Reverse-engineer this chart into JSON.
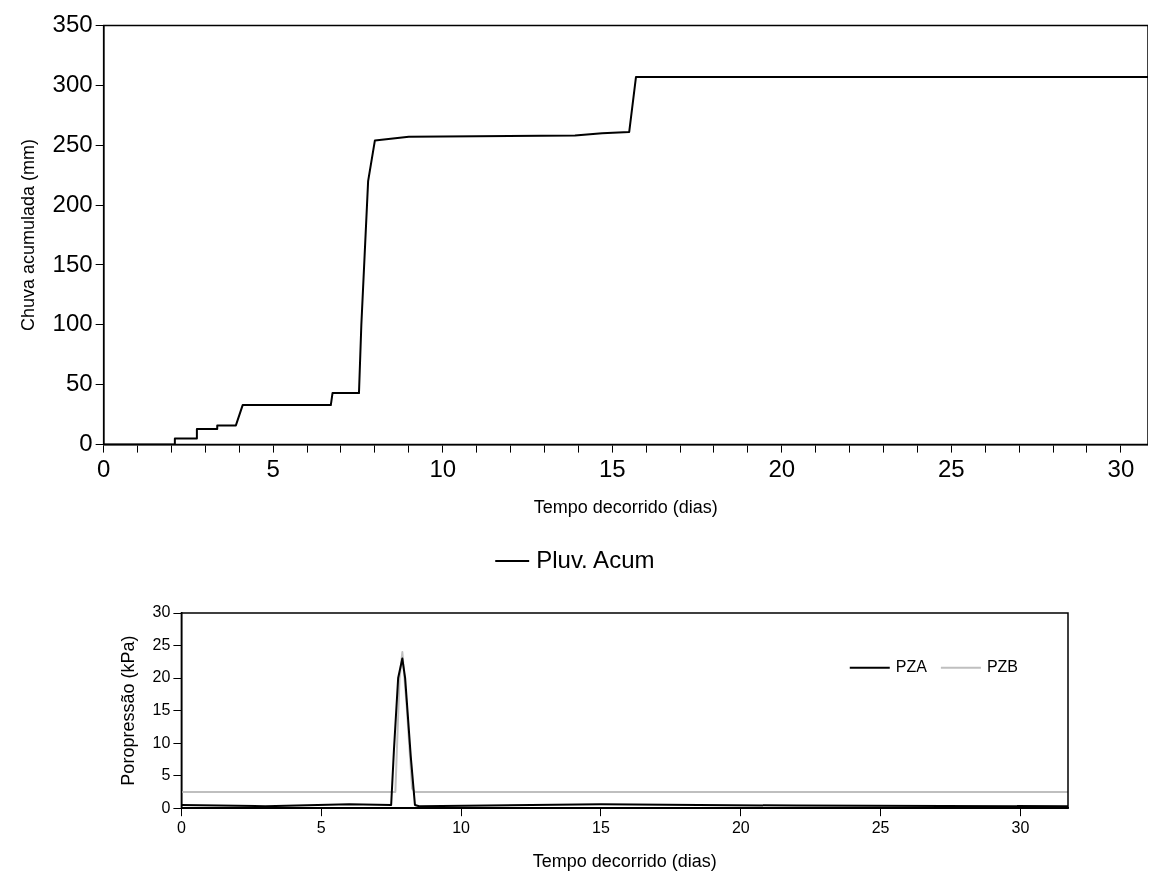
{
  "chart_data": [
    {
      "type": "line",
      "xlabel": "Tempo decorrido (dias)",
      "ylabel": "Chuva acumulada (mm)",
      "xlim": [
        0,
        30.8
      ],
      "ylim": [
        0,
        350
      ],
      "xticks": [
        0,
        {
          "value": 1,
          "label": null
        },
        {
          "value": 2,
          "label": null
        },
        {
          "value": 3,
          "label": null
        },
        {
          "value": 4,
          "label": null
        },
        5,
        {
          "value": 6,
          "label": null
        },
        {
          "value": 7,
          "label": null
        },
        {
          "value": 8,
          "label": null
        },
        {
          "value": 9,
          "label": null
        },
        10,
        {
          "value": 11,
          "label": null
        },
        {
          "value": 12,
          "label": null
        },
        {
          "value": 13,
          "label": null
        },
        {
          "value": 14,
          "label": null
        },
        15,
        {
          "value": 16,
          "label": null
        },
        {
          "value": 17,
          "label": null
        },
        {
          "value": 18,
          "label": null
        },
        {
          "value": 19,
          "label": null
        },
        20,
        {
          "value": 21,
          "label": null
        },
        {
          "value": 22,
          "label": null
        },
        {
          "value": 23,
          "label": null
        },
        {
          "value": 24,
          "label": null
        },
        25,
        {
          "value": 26,
          "label": null
        },
        {
          "value": 27,
          "label": null
        },
        {
          "value": 28,
          "label": null
        },
        {
          "value": 29,
          "label": null
        },
        30
      ],
      "yticks": [
        0,
        50,
        100,
        150,
        200,
        250,
        300,
        350
      ],
      "legend": "bottom",
      "marker": "none",
      "line_style": "solid",
      "series": [
        {
          "name": "Pluv. Acum",
          "color": "#000000",
          "x": [
            0,
            2.1,
            2.1,
            2.75,
            2.75,
            3.35,
            3.35,
            3.9,
            4.1,
            6.7,
            6.75,
            7.53,
            7.6,
            7.8,
            8.0,
            9,
            13.9,
            14.7,
            15.5,
            15.7,
            30.8
          ],
          "values": [
            0,
            0,
            5,
            5,
            13,
            13,
            16,
            16,
            33,
            33,
            43,
            43,
            100,
            220,
            254,
            257,
            258,
            260,
            261,
            307,
            307
          ]
        }
      ]
    },
    {
      "type": "line",
      "xlabel": "Tempo decorrido (dias)",
      "ylabel": "Poropressão (kPa)",
      "xlim": [
        0,
        31.7
      ],
      "ylim": [
        0,
        30
      ],
      "xticks": [
        0,
        5,
        10,
        15,
        20,
        25,
        30
      ],
      "yticks": [
        0,
        5,
        10,
        15,
        20,
        25,
        30
      ],
      "legend": "top right",
      "marker": "none",
      "line_style": "solid",
      "series": [
        {
          "name": "PZA",
          "color": "#000000",
          "x": [
            0,
            3,
            6,
            7.5,
            7.6,
            7.75,
            7.9,
            8.0,
            8.2,
            8.35,
            8.5,
            15,
            22,
            31.7
          ],
          "values": [
            0.5,
            0.3,
            0.6,
            0.5,
            9,
            20,
            23,
            20,
            8,
            0.5,
            0.3,
            0.6,
            0.4,
            0.3
          ]
        },
        {
          "name": "PZB",
          "color": "#bfbfbf",
          "x": [
            0,
            7.65,
            7.8,
            7.9,
            8.05,
            8.25,
            8.35,
            31.7
          ],
          "values": [
            2.5,
            2.5,
            20,
            24,
            16,
            3,
            2.5,
            2.5
          ]
        }
      ]
    }
  ]
}
